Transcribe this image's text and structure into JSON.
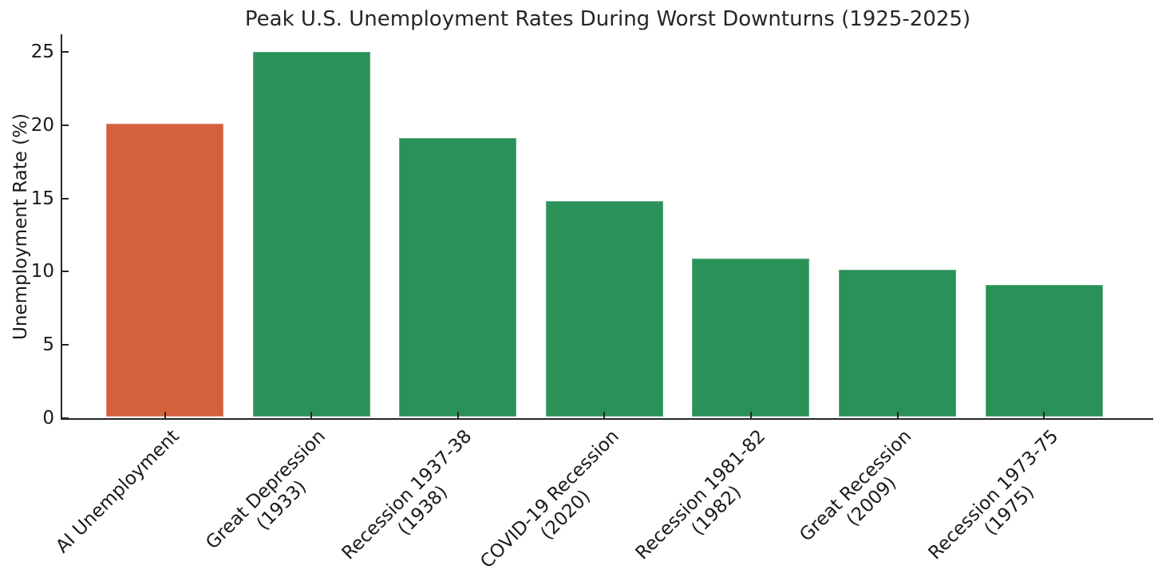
{
  "chart_data": {
    "type": "bar",
    "title": "Peak U.S. Unemployment Rates During Worst Downturns (1925-2025)",
    "ylabel": "Unemployment Rate (%)",
    "xlabel": "",
    "yticks": [
      0,
      5,
      10,
      15,
      20,
      25
    ],
    "ylim": [
      0,
      26.2
    ],
    "grid": false,
    "legend": false,
    "categories": [
      {
        "label": "AI Unemployment",
        "lines": [
          "AI Unemployment"
        ]
      },
      {
        "label": "Great Depression (1933)",
        "lines": [
          "Great Depression",
          "(1933)"
        ]
      },
      {
        "label": "Recession 1937-38 (1938)",
        "lines": [
          "Recession 1937-38",
          "(1938)"
        ]
      },
      {
        "label": "COVID-19 Recession (2020)",
        "lines": [
          "COVID-19 Recession",
          "(2020)"
        ]
      },
      {
        "label": "Recession 1981-82 (1982)",
        "lines": [
          "Recession 1981-82",
          "(1982)"
        ]
      },
      {
        "label": "Great Recession (2009)",
        "lines": [
          "Great Recession",
          "(2009)"
        ]
      },
      {
        "label": "Recession 1973-75 (1975)",
        "lines": [
          "Recession 1973-75",
          "(1975)"
        ]
      }
    ],
    "values": [
      20.0,
      24.9,
      19.0,
      14.7,
      10.8,
      10.0,
      9.0
    ],
    "bar_colors": [
      "#d5613c",
      "#2a9158",
      "#2a9158",
      "#2a9158",
      "#2a9158",
      "#2a9158",
      "#2a9158"
    ],
    "highlighted_category": "AI Unemployment",
    "colors": {
      "highlight": "#d5613c",
      "bar_default": "#2a9158",
      "text": "#1a1a1a",
      "axis": "#262626",
      "background": "#ffffff"
    }
  }
}
